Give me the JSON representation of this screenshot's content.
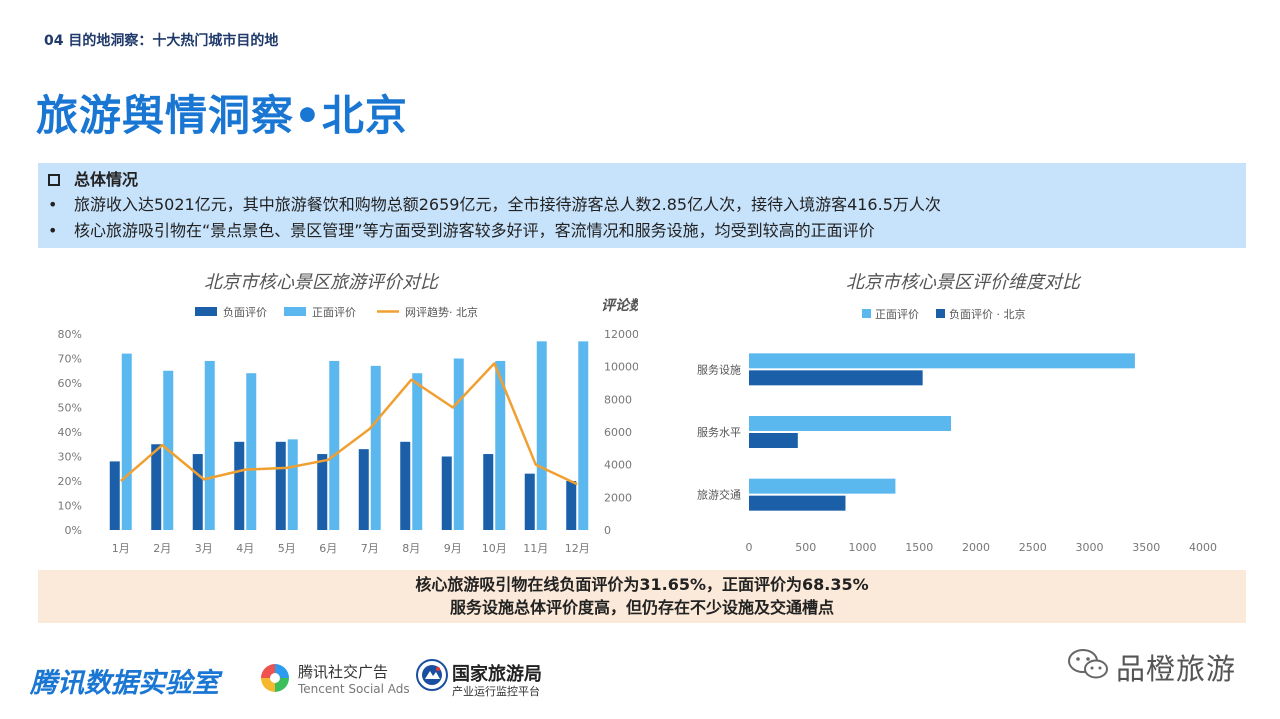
{
  "header": {
    "section": "04 目的地洞察：十大热门城市目的地",
    "title": "旅游舆情洞察•北京"
  },
  "overview": {
    "heading": "总体情况",
    "bullet_symbol": "•",
    "items": [
      "旅游收入达5021亿元，其中旅游餐饮和购物总额2659亿元，全市接待游客总人数2.85亿人次，接待入境游客416.5万人次",
      "核心旅游吸引物在“景点景色、景区管理”等方面受到游客较多好评，客流情况和服务设施，均受到较高的正面评价"
    ]
  },
  "chart_data": [
    {
      "type": "bar",
      "title": "北京市核心景区旅游评价对比",
      "categories": [
        "1月",
        "2月",
        "3月",
        "4月",
        "5月",
        "6月",
        "7月",
        "8月",
        "9月",
        "10月",
        "11月",
        "12月"
      ],
      "series": [
        {
          "name": "负面评价",
          "axis": "left",
          "color": "#1a5fa8",
          "values": [
            0.28,
            0.35,
            0.31,
            0.36,
            0.36,
            0.31,
            0.33,
            0.36,
            0.3,
            0.31,
            0.23,
            0.2
          ]
        },
        {
          "name": "正面评价",
          "axis": "left",
          "color": "#5bb8ef",
          "values": [
            0.72,
            0.65,
            0.69,
            0.64,
            0.37,
            0.69,
            0.67,
            0.64,
            0.7,
            0.69,
            0.77,
            0.77
          ]
        },
        {
          "name": "网评趋势· 北京",
          "axis": "right",
          "type": "line",
          "color": "#f0a030",
          "values": [
            3000,
            5200,
            3100,
            3700,
            3800,
            4300,
            6200,
            9200,
            7500,
            10200,
            4000,
            2800
          ]
        }
      ],
      "y_left": {
        "ylim": [
          0,
          0.8
        ],
        "ticks": [
          "0%",
          "10%",
          "20%",
          "30%",
          "40%",
          "50%",
          "60%",
          "70%",
          "80%"
        ]
      },
      "y_right": {
        "label": "评论数",
        "ylim": [
          0,
          12000
        ],
        "ticks": [
          "0",
          "2000",
          "4000",
          "6000",
          "8000",
          "10000",
          "12000"
        ]
      },
      "legend": "top",
      "grid": false
    },
    {
      "type": "bar",
      "orientation": "horizontal",
      "title": "北京市核心景区评价维度对比",
      "categories": [
        "服务设施",
        "服务水平",
        "旅游交通"
      ],
      "series": [
        {
          "name": "正面评价",
          "color": "#5bb8ef",
          "values": [
            3400,
            1780,
            1290
          ]
        },
        {
          "name": "负面评价 · 北京",
          "color": "#1a5fa8",
          "values": [
            1530,
            430,
            850
          ]
        }
      ],
      "xlim": [
        0,
        4000
      ],
      "x_ticks": [
        "0",
        "500",
        "1000",
        "1500",
        "2000",
        "2500",
        "3000",
        "3500",
        "4000"
      ],
      "legend": "top",
      "grid": false
    }
  ],
  "summary": {
    "line1": "核心旅游吸引物在线负面评价为31.65%，正面评价为68.35%",
    "line2": "服务设施总体评价度高，但仍存在不少设施及交通槽点"
  },
  "footer": {
    "brand": "腾讯数据实验室",
    "tencent_ads_name": "腾讯社交广告",
    "tencent_ads_sub": "Tencent Social Ads",
    "nta_name": "国家旅游局",
    "nta_sub": "产业运行监控平台",
    "watermark": "品橙旅游"
  }
}
